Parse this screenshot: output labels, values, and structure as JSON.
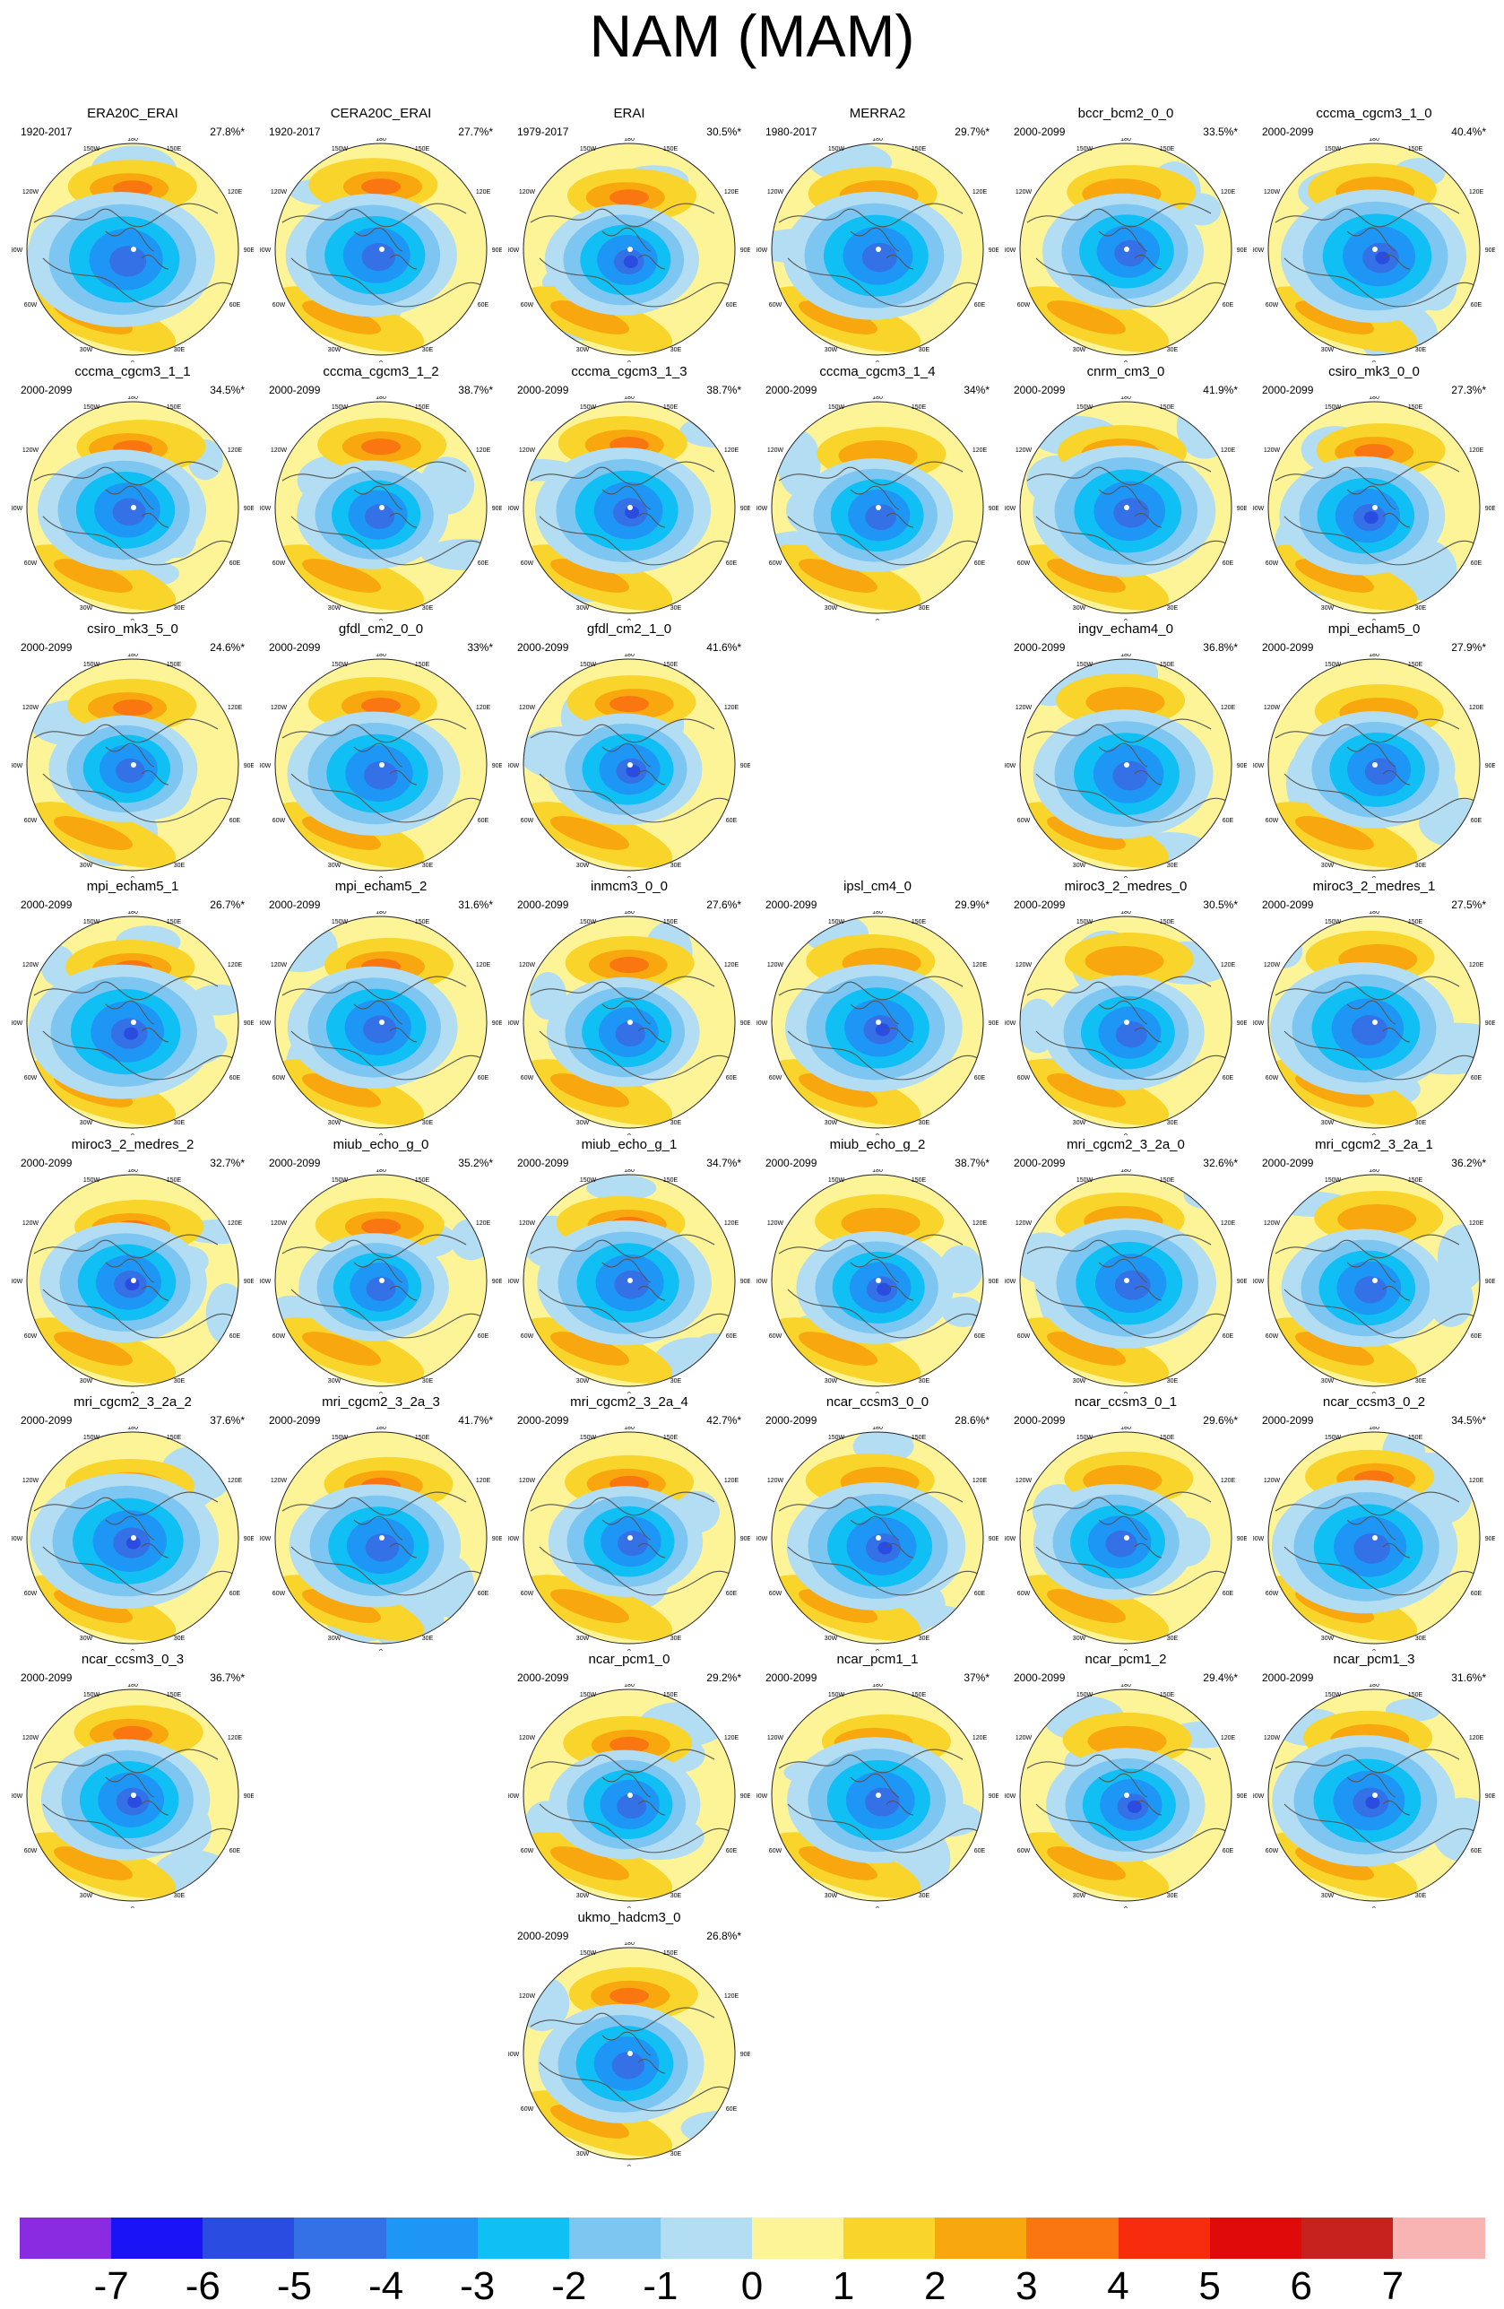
{
  "title": "NAM (MAM)",
  "panels": [
    {
      "name": "ERA20C_ERAI",
      "years": "1920-2017",
      "pct": "27.8%*"
    },
    {
      "name": "CERA20C_ERAI",
      "years": "1920-2017",
      "pct": "27.7%*"
    },
    {
      "name": "ERAI",
      "years": "1979-2017",
      "pct": "30.5%*"
    },
    {
      "name": "MERRA2",
      "years": "1980-2017",
      "pct": "29.7%*"
    },
    {
      "name": "bccr_bcm2_0_0",
      "years": "2000-2099",
      "pct": "33.5%*"
    },
    {
      "name": "cccma_cgcm3_1_0",
      "years": "2000-2099",
      "pct": "40.4%*"
    },
    {
      "name": "cccma_cgcm3_1_1",
      "years": "2000-2099",
      "pct": "34.5%*"
    },
    {
      "name": "cccma_cgcm3_1_2",
      "years": "2000-2099",
      "pct": "38.7%*"
    },
    {
      "name": "cccma_cgcm3_1_3",
      "years": "2000-2099",
      "pct": "38.7%*"
    },
    {
      "name": "cccma_cgcm3_1_4",
      "years": "2000-2099",
      "pct": "34%*"
    },
    {
      "name": "cnrm_cm3_0",
      "years": "2000-2099",
      "pct": "41.9%*"
    },
    {
      "name": "csiro_mk3_0_0",
      "years": "2000-2099",
      "pct": "27.3%*"
    },
    {
      "name": "csiro_mk3_5_0",
      "years": "2000-2099",
      "pct": "24.6%*"
    },
    {
      "name": "gfdl_cm2_0_0",
      "years": "2000-2099",
      "pct": "33%*"
    },
    {
      "name": "gfdl_cm2_1_0",
      "years": "2000-2099",
      "pct": "41.6%*"
    },
    {
      "name": "ingv_echam4_0",
      "years": "2000-2099",
      "pct": "36.8%*"
    },
    {
      "name": "mpi_echam5_0",
      "years": "2000-2099",
      "pct": "27.9%*"
    },
    {
      "name": "mpi_echam5_1",
      "years": "2000-2099",
      "pct": "26.7%*"
    },
    {
      "name": "mpi_echam5_2",
      "years": "2000-2099",
      "pct": "31.6%*"
    },
    {
      "name": "inmcm3_0_0",
      "years": "2000-2099",
      "pct": "27.6%*"
    },
    {
      "name": "ipsl_cm4_0",
      "years": "2000-2099",
      "pct": "29.9%*"
    },
    {
      "name": "miroc3_2_medres_0",
      "years": "2000-2099",
      "pct": "30.5%*"
    },
    {
      "name": "miroc3_2_medres_1",
      "years": "2000-2099",
      "pct": "27.5%*"
    },
    {
      "name": "miroc3_2_medres_2",
      "years": "2000-2099",
      "pct": "32.7%*"
    },
    {
      "name": "miub_echo_g_0",
      "years": "2000-2099",
      "pct": "35.2%*"
    },
    {
      "name": "miub_echo_g_1",
      "years": "2000-2099",
      "pct": "34.7%*"
    },
    {
      "name": "miub_echo_g_2",
      "years": "2000-2099",
      "pct": "38.7%*"
    },
    {
      "name": "mri_cgcm2_3_2a_0",
      "years": "2000-2099",
      "pct": "32.6%*"
    },
    {
      "name": "mri_cgcm2_3_2a_1",
      "years": "2000-2099",
      "pct": "36.2%*"
    },
    {
      "name": "mri_cgcm2_3_2a_2",
      "years": "2000-2099",
      "pct": "37.6%*"
    },
    {
      "name": "mri_cgcm2_3_2a_3",
      "years": "2000-2099",
      "pct": "41.7%*"
    },
    {
      "name": "mri_cgcm2_3_2a_4",
      "years": "2000-2099",
      "pct": "42.7%*"
    },
    {
      "name": "ncar_ccsm3_0_0",
      "years": "2000-2099",
      "pct": "28.6%*"
    },
    {
      "name": "ncar_ccsm3_0_1",
      "years": "2000-2099",
      "pct": "29.6%*"
    },
    {
      "name": "ncar_ccsm3_0_2",
      "years": "2000-2099",
      "pct": "34.5%*"
    },
    {
      "name": "ncar_ccsm3_0_3",
      "years": "2000-2099",
      "pct": "36.7%*"
    },
    {
      "name": "ncar_pcm1_0",
      "years": "2000-2099",
      "pct": "29.2%*"
    },
    {
      "name": "ncar_pcm1_1",
      "years": "2000-2099",
      "pct": "37%*"
    },
    {
      "name": "ncar_pcm1_2",
      "years": "2000-2099",
      "pct": "29.4%*"
    },
    {
      "name": "ncar_pcm1_3",
      "years": "2000-2099",
      "pct": "31.6%*"
    },
    {
      "name": "ukmo_hadcm3_0",
      "years": "2000-2099",
      "pct": "26.8%*"
    }
  ],
  "map_labels": {
    "top": "180",
    "top_left": "150W",
    "top_right": "150E",
    "upper_left": "120W",
    "upper_right": "120E",
    "left": "90W",
    "right": "90E",
    "lower_left": "60W",
    "lower_right": "60E",
    "bottom_left": "30W",
    "bottom_right": "30E",
    "bottom": "0"
  },
  "colorbar": {
    "colors": [
      "#8a2be2",
      "#1a13f5",
      "#2b4ce0",
      "#3470e6",
      "#1e96f5",
      "#10c0f5",
      "#7ec6f2",
      "#b3ddf2",
      "#fdf498",
      "#f9d42a",
      "#f9a70e",
      "#f97610",
      "#f72c0c",
      "#e00a0a",
      "#c8221e",
      "#f8b3b3"
    ],
    "ticks": [
      "-7",
      "-6",
      "-5",
      "-4",
      "-3",
      "-2",
      "-1",
      "0",
      "1",
      "2",
      "3",
      "4",
      "5",
      "6",
      "7"
    ]
  }
}
